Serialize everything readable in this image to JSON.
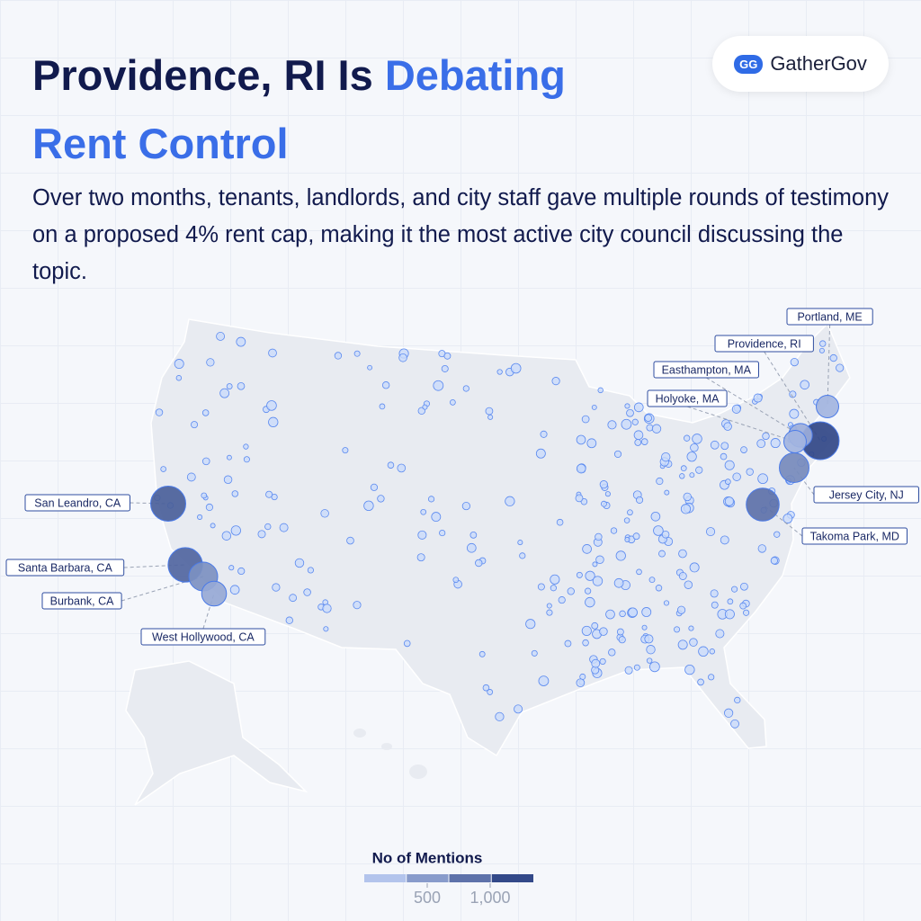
{
  "header": {
    "title_parts": [
      "Providence, RI Is ",
      "Debating Rent Control"
    ],
    "subtitle": "Over two months, tenants, landlords, and city staff gave multiple rounds of testimony on a proposed 4% rent cap, making it the most active city council discussing the topic.",
    "logo": {
      "icon": "GG",
      "name": "GatherGov"
    }
  },
  "map": {
    "cities": [
      {
        "name": "Portland, ME",
        "mentions": 300
      },
      {
        "name": "Providence, RI",
        "mentions": 1200
      },
      {
        "name": "Easthampton, MA",
        "mentions": 350
      },
      {
        "name": "Holyoke, MA",
        "mentions": 300
      },
      {
        "name": "Jersey City, NJ",
        "mentions": 650
      },
      {
        "name": "Takoma Park, MD",
        "mentions": 850
      },
      {
        "name": "San Leandro, CA",
        "mentions": 1000
      },
      {
        "name": "Santa Barbara, CA",
        "mentions": 950
      },
      {
        "name": "Burbank, CA",
        "mentions": 600
      },
      {
        "name": "West Hollywood, CA",
        "mentions": 400
      }
    ],
    "legend": {
      "title": "No of Mentions",
      "range": [
        0,
        1350
      ],
      "ticks": [
        500,
        {
          "value": 1000,
          "label": "1,000"
        }
      ]
    }
  }
}
